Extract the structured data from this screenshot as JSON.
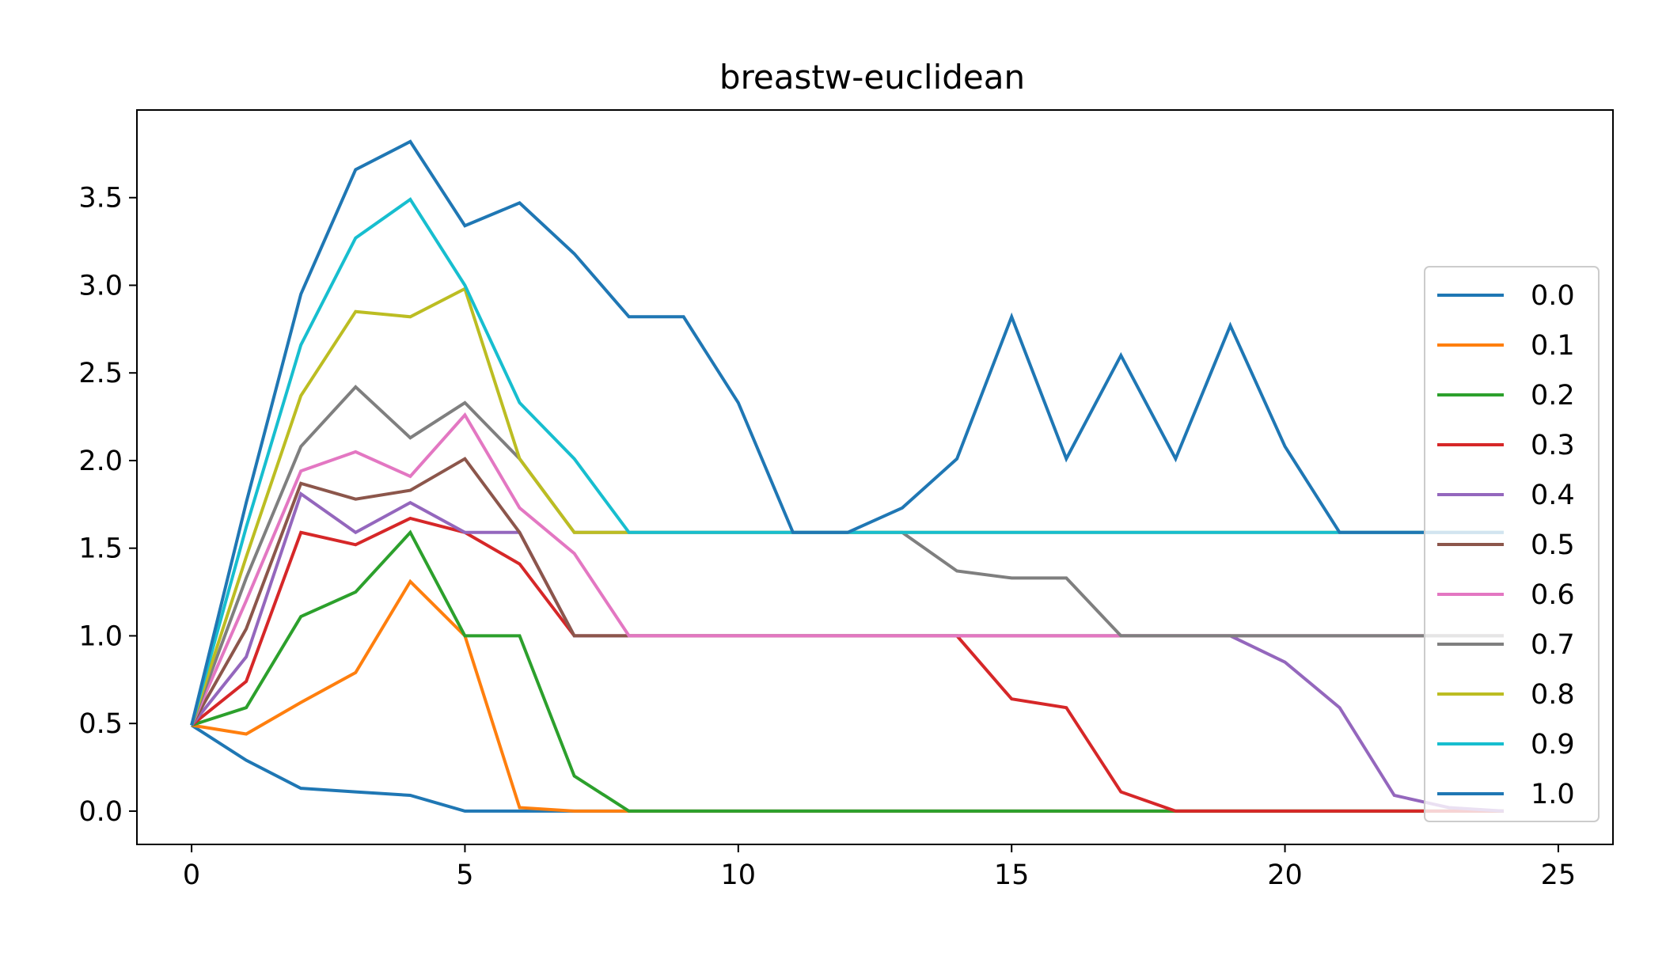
{
  "chart_data": {
    "type": "line",
    "title": "breastw-euclidean",
    "xlabel": "",
    "ylabel": "",
    "xlim": [
      -1,
      26
    ],
    "ylim": [
      -0.19,
      4.0
    ],
    "xticks": [
      0,
      5,
      10,
      15,
      20,
      25
    ],
    "xtick_labels": [
      "0",
      "5",
      "10",
      "15",
      "20",
      "25"
    ],
    "yticks": [
      0.0,
      0.5,
      1.0,
      1.5,
      2.0,
      2.5,
      3.0,
      3.5
    ],
    "ytick_labels": [
      "0.0",
      "0.5",
      "1.0",
      "1.5",
      "2.0",
      "2.5",
      "3.0",
      "3.5"
    ],
    "grid": false,
    "legend_position": "right",
    "x": [
      0,
      1,
      2,
      3,
      4,
      5,
      6,
      7,
      8,
      9,
      10,
      11,
      12,
      13,
      14,
      15,
      16,
      17,
      18,
      19,
      20,
      21,
      22,
      23,
      24
    ],
    "series": [
      {
        "name": "0.0",
        "color": "#1f77b4",
        "values": [
          0.49,
          0.29,
          0.13,
          0.11,
          0.09,
          0.0,
          0.0,
          0.0,
          0.0,
          0.0,
          0.0,
          0.0,
          0.0,
          0.0,
          0.0,
          0.0,
          0.0,
          0.0,
          0.0,
          0.0,
          0.0,
          0.0,
          0.0,
          0.0,
          0.0
        ]
      },
      {
        "name": "0.1",
        "color": "#ff7f0e",
        "values": [
          0.49,
          0.44,
          0.62,
          0.79,
          1.31,
          1.0,
          0.02,
          0.0,
          0.0,
          0.0,
          0.0,
          0.0,
          0.0,
          0.0,
          0.0,
          0.0,
          0.0,
          0.0,
          0.0,
          0.0,
          0.0,
          0.0,
          0.0,
          0.0,
          0.0
        ]
      },
      {
        "name": "0.2",
        "color": "#2ca02c",
        "values": [
          0.49,
          0.59,
          1.11,
          1.25,
          1.59,
          1.0,
          1.0,
          0.2,
          0.0,
          0.0,
          0.0,
          0.0,
          0.0,
          0.0,
          0.0,
          0.0,
          0.0,
          0.0,
          0.0,
          0.0,
          0.0,
          0.0,
          0.0,
          0.0,
          0.0
        ]
      },
      {
        "name": "0.3",
        "color": "#d62728",
        "values": [
          0.49,
          0.74,
          1.59,
          1.52,
          1.67,
          1.59,
          1.41,
          1.0,
          1.0,
          1.0,
          1.0,
          1.0,
          1.0,
          1.0,
          1.0,
          0.64,
          0.59,
          0.11,
          0.0,
          0.0,
          0.0,
          0.0,
          0.0,
          0.0,
          0.0
        ]
      },
      {
        "name": "0.4",
        "color": "#9467bd",
        "values": [
          0.49,
          0.88,
          1.81,
          1.59,
          1.76,
          1.59,
          1.59,
          1.0,
          1.0,
          1.0,
          1.0,
          1.0,
          1.0,
          1.0,
          1.0,
          1.0,
          1.0,
          1.0,
          1.0,
          1.0,
          0.85,
          0.59,
          0.09,
          0.02,
          0.0
        ]
      },
      {
        "name": "0.5",
        "color": "#8c564b",
        "values": [
          0.49,
          1.04,
          1.87,
          1.78,
          1.83,
          2.01,
          1.59,
          1.0,
          1.0,
          1.0,
          1.0,
          1.0,
          1.0,
          1.0,
          1.0,
          1.0,
          1.0,
          1.0,
          1.0,
          1.0,
          1.0,
          1.0,
          1.0,
          1.0,
          1.0
        ]
      },
      {
        "name": "0.6",
        "color": "#e377c2",
        "values": [
          0.49,
          1.2,
          1.94,
          2.05,
          1.91,
          2.26,
          1.73,
          1.47,
          1.0,
          1.0,
          1.0,
          1.0,
          1.0,
          1.0,
          1.0,
          1.0,
          1.0,
          1.0,
          1.0,
          1.0,
          1.0,
          1.0,
          1.0,
          1.0,
          1.0
        ]
      },
      {
        "name": "0.7",
        "color": "#7f7f7f",
        "values": [
          0.49,
          1.33,
          2.08,
          2.42,
          2.13,
          2.33,
          2.01,
          1.59,
          1.59,
          1.59,
          1.59,
          1.59,
          1.59,
          1.59,
          1.37,
          1.33,
          1.33,
          1.0,
          1.0,
          1.0,
          1.0,
          1.0,
          1.0,
          1.0,
          1.0
        ]
      },
      {
        "name": "0.8",
        "color": "#bcbd22",
        "values": [
          0.49,
          1.45,
          2.37,
          2.85,
          2.82,
          2.98,
          2.01,
          1.59,
          1.59,
          1.59,
          1.59,
          1.59,
          1.59,
          1.59,
          1.59,
          1.59,
          1.59,
          1.59,
          1.59,
          1.59,
          1.59,
          1.59,
          1.59,
          1.59,
          1.59
        ]
      },
      {
        "name": "0.9",
        "color": "#17becf",
        "values": [
          0.49,
          1.62,
          2.66,
          3.27,
          3.49,
          3.0,
          2.33,
          2.01,
          1.59,
          1.59,
          1.59,
          1.59,
          1.59,
          1.59,
          1.59,
          1.59,
          1.59,
          1.59,
          1.59,
          1.59,
          1.59,
          1.59,
          1.59,
          1.59,
          1.59
        ]
      },
      {
        "name": "1.0",
        "color": "#1f77b4",
        "values": [
          0.49,
          1.76,
          2.95,
          3.66,
          3.82,
          3.34,
          3.47,
          3.18,
          2.82,
          2.82,
          2.33,
          1.59,
          1.59,
          1.73,
          2.01,
          2.82,
          2.01,
          2.6,
          2.01,
          2.77,
          2.08,
          1.59,
          1.59,
          1.59,
          1.59
        ]
      }
    ]
  }
}
